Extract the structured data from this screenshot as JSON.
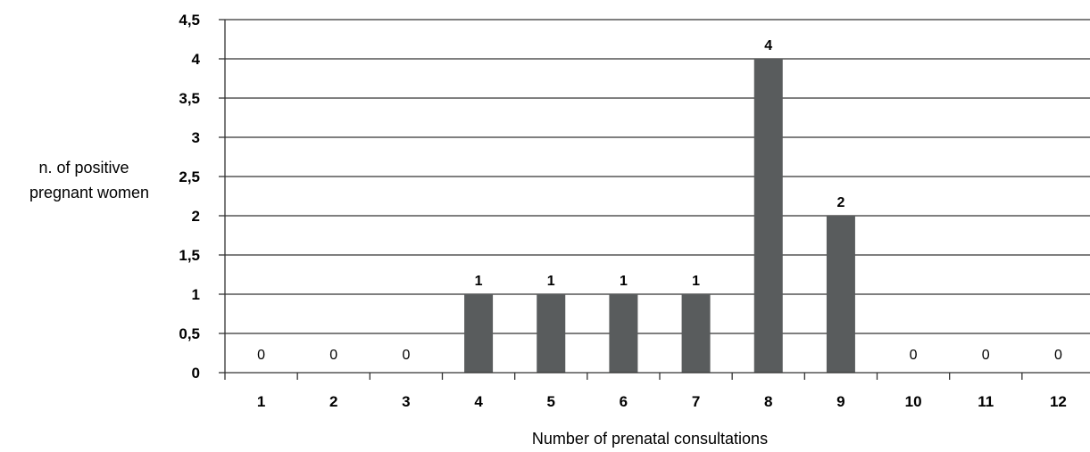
{
  "chart_data": {
    "type": "bar",
    "categories": [
      "1",
      "2",
      "3",
      "4",
      "5",
      "6",
      "7",
      "8",
      "9",
      "10",
      "11",
      "12"
    ],
    "values": [
      0,
      0,
      0,
      1,
      1,
      1,
      1,
      4,
      2,
      0,
      0,
      0
    ],
    "data_labels": [
      "0",
      "0",
      "0",
      "1",
      "1",
      "1",
      "1",
      "4",
      "2",
      "0",
      "0",
      "0"
    ],
    "y_tick_labels": [
      "0",
      "0,5",
      "1",
      "1,5",
      "2",
      "2,5",
      "3",
      "3,5",
      "4",
      "4,5"
    ],
    "xlabel": "Number of prenatal consultations",
    "ylabel_lines": [
      "n. of positive",
      "pregnant women"
    ],
    "ylim": [
      0,
      4.5
    ],
    "ytick_step": 0.5,
    "grid": true,
    "legend": "none",
    "bar_color": "#595c5d",
    "gridline_color": "#333333"
  }
}
